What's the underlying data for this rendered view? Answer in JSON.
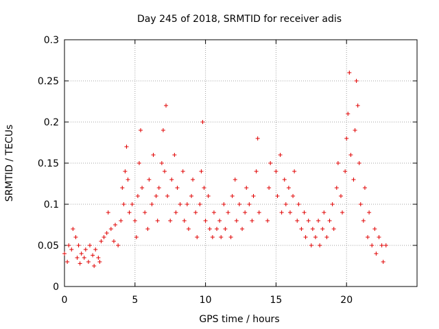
{
  "chart_data": {
    "type": "scatter",
    "title": "Day 245 of 2018, SRMTID for receiver adis",
    "xlabel": "GPS time / hours",
    "ylabel": "SRMTID / TECUs",
    "xlim": [
      0,
      25
    ],
    "ylim": [
      0,
      0.3
    ],
    "x_ticks": [
      0,
      5,
      10,
      15,
      20
    ],
    "x_tick_labels": [
      "0",
      "5",
      "10",
      "15",
      "20"
    ],
    "y_ticks": [
      0,
      0.05,
      0.1,
      0.15,
      0.2,
      0.25,
      0.3
    ],
    "y_tick_labels": [
      "0",
      "0.05",
      "0.1",
      "0.15",
      "0.2",
      "0.25",
      "0.3"
    ],
    "grid": true,
    "marker": "plus",
    "color": "#e00000",
    "series": [
      {
        "name": "SRMTID",
        "points": [
          [
            0.0,
            0.04
          ],
          [
            0.2,
            0.03
          ],
          [
            0.3,
            0.05
          ],
          [
            0.5,
            0.045
          ],
          [
            0.6,
            0.07
          ],
          [
            0.8,
            0.06
          ],
          [
            0.9,
            0.035
          ],
          [
            1.0,
            0.05
          ],
          [
            1.1,
            0.028
          ],
          [
            1.2,
            0.04
          ],
          [
            1.4,
            0.035
          ],
          [
            1.5,
            0.045
          ],
          [
            1.7,
            0.03
          ],
          [
            1.8,
            0.05
          ],
          [
            2.0,
            0.038
          ],
          [
            2.1,
            0.025
          ],
          [
            2.2,
            0.045
          ],
          [
            2.4,
            0.035
          ],
          [
            2.5,
            0.03
          ],
          [
            2.6,
            0.055
          ],
          [
            2.8,
            0.06
          ],
          [
            3.0,
            0.065
          ],
          [
            3.1,
            0.09
          ],
          [
            3.3,
            0.07
          ],
          [
            3.5,
            0.055
          ],
          [
            3.6,
            0.075
          ],
          [
            3.8,
            0.05
          ],
          [
            4.0,
            0.08
          ],
          [
            4.1,
            0.12
          ],
          [
            4.2,
            0.1
          ],
          [
            4.3,
            0.14
          ],
          [
            4.4,
            0.17
          ],
          [
            4.5,
            0.13
          ],
          [
            4.6,
            0.09
          ],
          [
            4.8,
            0.1
          ],
          [
            5.0,
            0.08
          ],
          [
            5.1,
            0.06
          ],
          [
            5.2,
            0.11
          ],
          [
            5.3,
            0.15
          ],
          [
            5.4,
            0.19
          ],
          [
            5.5,
            0.12
          ],
          [
            5.7,
            0.09
          ],
          [
            5.9,
            0.07
          ],
          [
            6.0,
            0.13
          ],
          [
            6.2,
            0.1
          ],
          [
            6.3,
            0.16
          ],
          [
            6.5,
            0.11
          ],
          [
            6.6,
            0.08
          ],
          [
            6.7,
            0.12
          ],
          [
            6.9,
            0.15
          ],
          [
            7.0,
            0.19
          ],
          [
            7.1,
            0.14
          ],
          [
            7.2,
            0.22
          ],
          [
            7.3,
            0.11
          ],
          [
            7.5,
            0.08
          ],
          [
            7.6,
            0.13
          ],
          [
            7.8,
            0.16
          ],
          [
            7.9,
            0.09
          ],
          [
            8.0,
            0.12
          ],
          [
            8.2,
            0.1
          ],
          [
            8.4,
            0.14
          ],
          [
            8.5,
            0.08
          ],
          [
            8.7,
            0.1
          ],
          [
            8.8,
            0.07
          ],
          [
            9.0,
            0.11
          ],
          [
            9.1,
            0.13
          ],
          [
            9.3,
            0.09
          ],
          [
            9.4,
            0.06
          ],
          [
            9.6,
            0.1
          ],
          [
            9.7,
            0.14
          ],
          [
            9.8,
            0.2
          ],
          [
            9.9,
            0.12
          ],
          [
            10.0,
            0.08
          ],
          [
            10.2,
            0.11
          ],
          [
            10.3,
            0.07
          ],
          [
            10.5,
            0.06
          ],
          [
            10.6,
            0.09
          ],
          [
            10.8,
            0.07
          ],
          [
            11.0,
            0.08
          ],
          [
            11.1,
            0.06
          ],
          [
            11.3,
            0.1
          ],
          [
            11.4,
            0.07
          ],
          [
            11.6,
            0.09
          ],
          [
            11.8,
            0.06
          ],
          [
            11.9,
            0.11
          ],
          [
            12.1,
            0.13
          ],
          [
            12.2,
            0.08
          ],
          [
            12.4,
            0.1
          ],
          [
            12.6,
            0.07
          ],
          [
            12.8,
            0.09
          ],
          [
            12.9,
            0.12
          ],
          [
            13.1,
            0.1
          ],
          [
            13.3,
            0.08
          ],
          [
            13.4,
            0.11
          ],
          [
            13.6,
            0.14
          ],
          [
            13.7,
            0.18
          ],
          [
            13.8,
            0.09
          ],
          [
            14.4,
            0.08
          ],
          [
            14.5,
            0.12
          ],
          [
            14.6,
            0.15
          ],
          [
            15.0,
            0.14
          ],
          [
            15.1,
            0.11
          ],
          [
            15.3,
            0.16
          ],
          [
            15.4,
            0.09
          ],
          [
            15.6,
            0.13
          ],
          [
            15.7,
            0.1
          ],
          [
            15.9,
            0.12
          ],
          [
            16.0,
            0.09
          ],
          [
            16.2,
            0.11
          ],
          [
            16.3,
            0.14
          ],
          [
            16.5,
            0.08
          ],
          [
            16.6,
            0.1
          ],
          [
            16.8,
            0.07
          ],
          [
            17.0,
            0.09
          ],
          [
            17.1,
            0.06
          ],
          [
            17.3,
            0.08
          ],
          [
            17.5,
            0.05
          ],
          [
            17.6,
            0.07
          ],
          [
            17.8,
            0.06
          ],
          [
            18.0,
            0.08
          ],
          [
            18.1,
            0.05
          ],
          [
            18.3,
            0.07
          ],
          [
            18.4,
            0.09
          ],
          [
            18.6,
            0.06
          ],
          [
            18.8,
            0.08
          ],
          [
            19.0,
            0.1
          ],
          [
            19.1,
            0.07
          ],
          [
            19.3,
            0.12
          ],
          [
            19.4,
            0.15
          ],
          [
            19.6,
            0.11
          ],
          [
            19.7,
            0.09
          ],
          [
            19.9,
            0.14
          ],
          [
            20.0,
            0.18
          ],
          [
            20.1,
            0.21
          ],
          [
            20.2,
            0.26
          ],
          [
            20.3,
            0.16
          ],
          [
            20.5,
            0.13
          ],
          [
            20.6,
            0.19
          ],
          [
            20.7,
            0.25
          ],
          [
            20.8,
            0.22
          ],
          [
            20.9,
            0.15
          ],
          [
            21.0,
            0.1
          ],
          [
            21.2,
            0.08
          ],
          [
            21.3,
            0.12
          ],
          [
            21.5,
            0.06
          ],
          [
            21.6,
            0.09
          ],
          [
            21.8,
            0.05
          ],
          [
            22.0,
            0.07
          ],
          [
            22.1,
            0.04
          ],
          [
            22.3,
            0.06
          ],
          [
            22.5,
            0.05
          ],
          [
            22.6,
            0.03
          ],
          [
            22.8,
            0.05
          ]
        ]
      }
    ]
  }
}
